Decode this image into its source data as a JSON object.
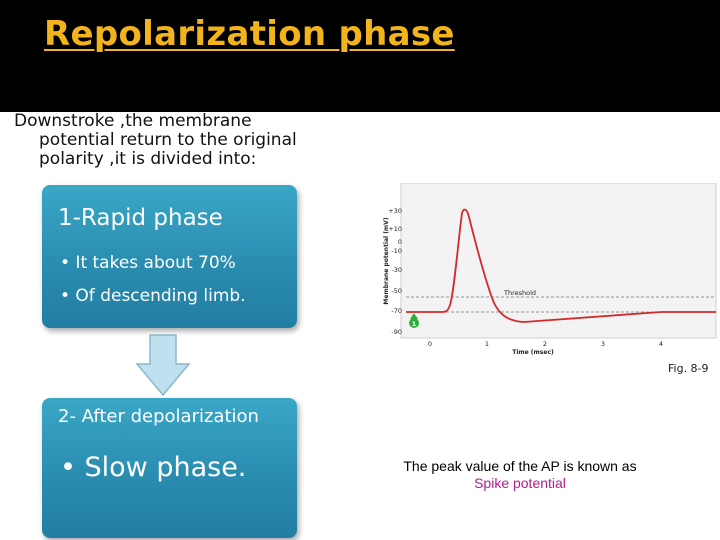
{
  "slide": {
    "title": "Repolarization phase",
    "intro": [
      "Downstroke ,the membrane",
      "potential return to the original",
      "polarity ,it is divided into:"
    ],
    "box1": {
      "heading": "1-Rapid phase",
      "bullets": [
        "• It takes about 70%",
        "• Of descending limb."
      ]
    },
    "box2": {
      "heading": "2- After depolarization",
      "bullets": [
        "• Slow phase."
      ]
    },
    "figure_label": "Fig. 8-9",
    "caption": {
      "line1": "The peak value of the AP is known as",
      "line2": "Spike potential"
    }
  },
  "graph": {
    "ylabel": "Membrane potential (mV)",
    "xlabel": "Time (msec)",
    "yticks": [
      "+30",
      "+10",
      "0",
      "-10",
      "-30",
      "-50",
      "-70",
      "-90"
    ],
    "xticks": [
      "0",
      "1",
      "2",
      "3",
      "4"
    ],
    "threshold_label": "Threshold",
    "marker_label": "1",
    "colors": {
      "trace": "#d42a2a",
      "marker": "#2fae3a"
    }
  }
}
